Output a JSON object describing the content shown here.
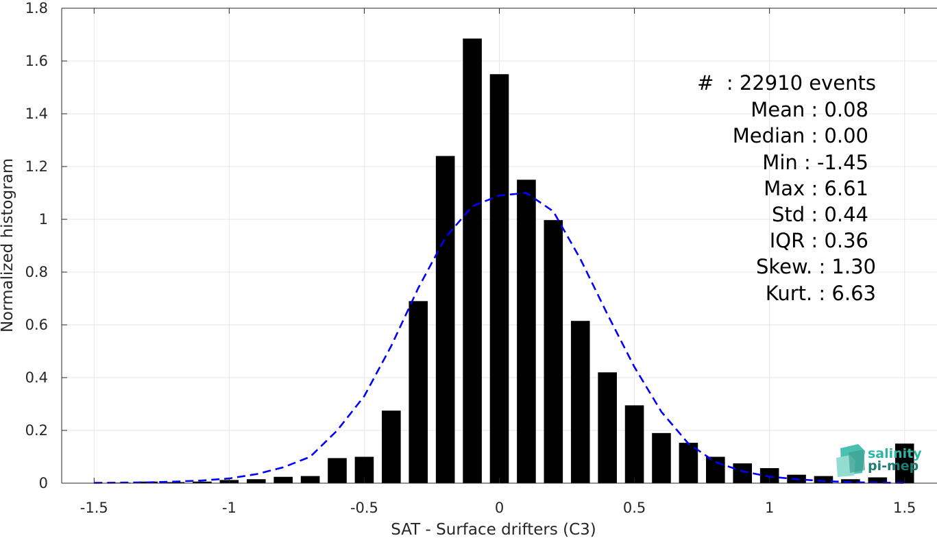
{
  "chart_data": {
    "type": "bar",
    "xlabel": "SAT - Surface drifters (C3)",
    "ylabel": "Normalized histogram",
    "xlim": [
      -1.62,
      1.62
    ],
    "ylim": [
      0,
      1.8
    ],
    "xticks": [
      -1.5,
      -1,
      -0.5,
      0,
      0.5,
      1,
      1.5
    ],
    "xtick_labels": [
      "-1.5",
      "-1",
      "-0.5",
      "0",
      "0.5",
      "1",
      "1.5"
    ],
    "yticks": [
      0,
      0.2,
      0.4,
      0.6,
      0.8,
      1,
      1.2,
      1.4,
      1.6,
      1.8
    ],
    "ytick_labels": [
      "0",
      "0.2",
      "0.4",
      "0.6",
      "0.8",
      "1",
      "1.2",
      "1.4",
      "1.6",
      "1.8"
    ],
    "grid": true,
    "bar_color": "#000000",
    "curve_color": "#0000ff",
    "bars": {
      "x": [
        -1.5,
        -1.4,
        -1.3,
        -1.2,
        -1.1,
        -1.0,
        -0.9,
        -0.8,
        -0.7,
        -0.6,
        -0.5,
        -0.4,
        -0.3,
        -0.2,
        -0.1,
        0.0,
        0.1,
        0.2,
        0.3,
        0.4,
        0.5,
        0.6,
        0.7,
        0.8,
        0.9,
        1.0,
        1.1,
        1.2,
        1.3,
        1.4,
        1.5
      ],
      "values": [
        0.001,
        0.002,
        0.006,
        0.004,
        0.006,
        0.012,
        0.015,
        0.024,
        0.027,
        0.095,
        0.1,
        0.275,
        0.69,
        1.24,
        1.685,
        1.55,
        1.15,
        0.997,
        0.615,
        0.42,
        0.295,
        0.19,
        0.153,
        0.1,
        0.075,
        0.057,
        0.032,
        0.027,
        0.015,
        0.022,
        0.15
      ]
    },
    "fit_curve": {
      "style": "dashed",
      "x": [
        -1.5,
        -1.4,
        -1.3,
        -1.2,
        -1.1,
        -1.0,
        -0.9,
        -0.8,
        -0.7,
        -0.6,
        -0.5,
        -0.4,
        -0.3,
        -0.2,
        -0.1,
        0.0,
        0.1,
        0.2,
        0.3,
        0.4,
        0.5,
        0.6,
        0.7,
        0.8,
        0.9,
        1.0,
        1.1,
        1.2,
        1.3,
        1.4,
        1.5
      ],
      "values": [
        0.001,
        0.002,
        0.003,
        0.006,
        0.01,
        0.018,
        0.034,
        0.06,
        0.1,
        0.2,
        0.33,
        0.52,
        0.74,
        0.93,
        1.05,
        1.09,
        1.1,
        1.03,
        0.85,
        0.64,
        0.44,
        0.27,
        0.15,
        0.08,
        0.045,
        0.025,
        0.015,
        0.008,
        0.004,
        0.002,
        0.001
      ]
    },
    "annotations": [
      "#  : 22910 events",
      "Mean : 0.08",
      "Median : 0.00",
      "Min : -1.45",
      "Max : 6.61",
      "Std : 0.44",
      "IQR : 0.36",
      "Skew. : 1.30",
      "Kurt. : 6.63"
    ]
  },
  "logo": {
    "line1": "salinity",
    "line2": "pi-mep",
    "color1": "#2bb6a3",
    "color2": "#1d7d70"
  }
}
